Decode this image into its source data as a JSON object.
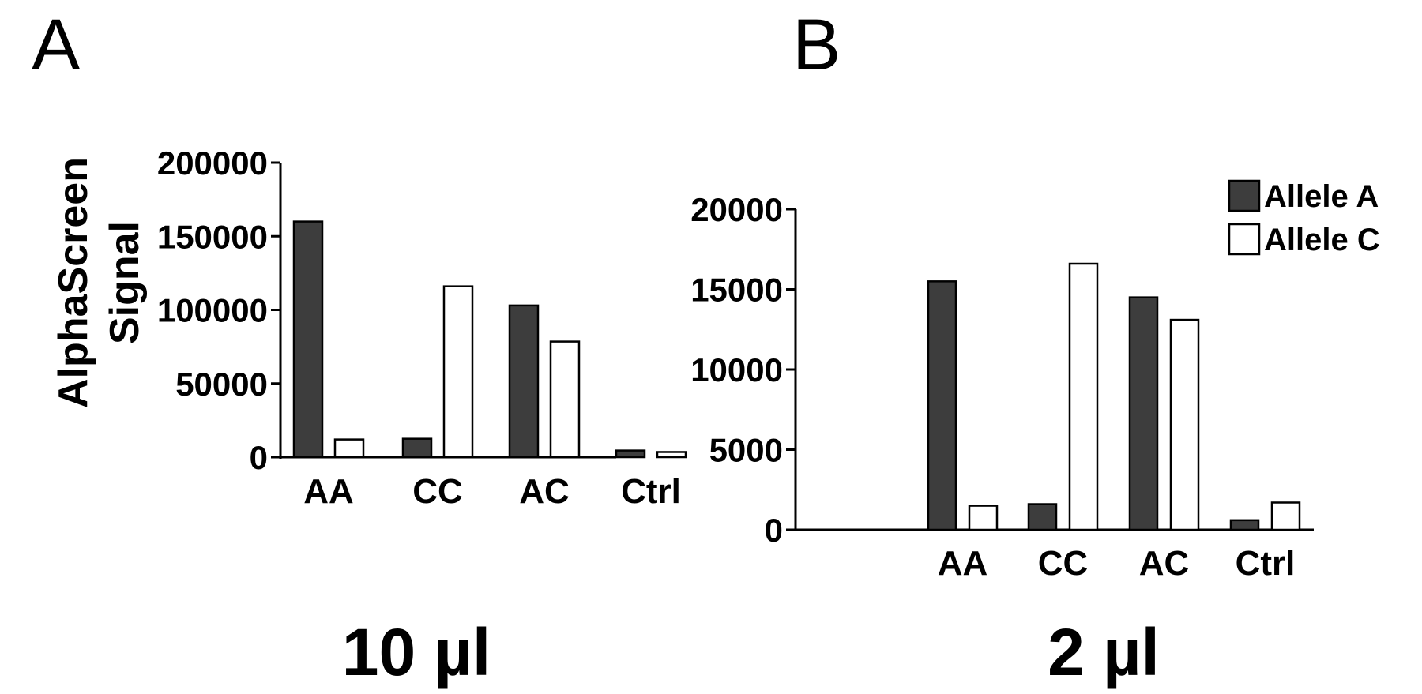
{
  "figure": {
    "panel_labels": [
      "A",
      "B"
    ]
  },
  "colors": {
    "allele_a": "#3d3d3d",
    "allele_c": "#ffffff",
    "stroke": "#000000"
  },
  "chart_data": [
    {
      "type": "bar",
      "panel": "A",
      "categories": [
        "AA",
        "CC",
        "AC",
        "Ctrl"
      ],
      "series": [
        {
          "name": "Allele A",
          "values": [
            160000,
            12500,
            103000,
            4500
          ]
        },
        {
          "name": "Allele C",
          "values": [
            12000,
            116000,
            78500,
            3500
          ]
        }
      ],
      "ylabel": "AlphaScreen\nSignal",
      "xlabel": "10 µl",
      "ylim": [
        0,
        200000
      ],
      "yticks": [
        "0",
        "50000",
        "100000",
        "150000",
        "200000"
      ],
      "ytick_values": [
        0,
        50000,
        100000,
        150000,
        200000
      ],
      "legend": false
    },
    {
      "type": "bar",
      "panel": "B",
      "categories": [
        "AA",
        "CC",
        "AC",
        "Ctrl"
      ],
      "series": [
        {
          "name": "Allele A",
          "values": [
            15500,
            1600,
            14500,
            600
          ]
        },
        {
          "name": "Allele C",
          "values": [
            1500,
            16600,
            13100,
            1700
          ]
        }
      ],
      "ylabel": "",
      "xlabel": "2 µl",
      "ylim": [
        0,
        20000
      ],
      "yticks": [
        "0",
        "5000",
        "10000",
        "15000",
        "20000"
      ],
      "ytick_values": [
        0,
        5000,
        10000,
        15000,
        20000
      ],
      "legend": true,
      "legend_position": "top-right"
    }
  ]
}
